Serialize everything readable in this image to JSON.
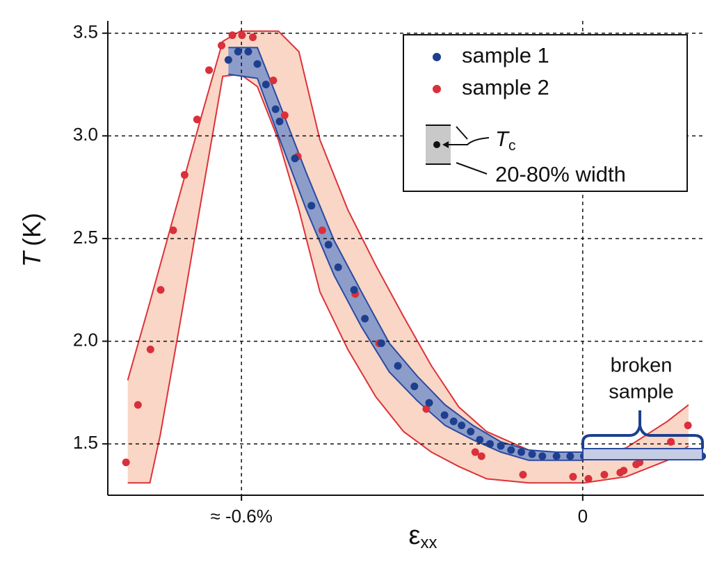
{
  "chart_data": {
    "type": "scatter",
    "y_label_symbol": "T",
    "y_label_unit": "(K)",
    "x_label_symbol": "ε",
    "x_label_subscript": "xx",
    "xlim": [
      -0.835,
      0.213
    ],
    "ylim": [
      1.25,
      3.56
    ],
    "xticks": [
      {
        "value": -0.6,
        "label": "≈ -0.6%"
      },
      0
    ],
    "yticks": [
      1.5,
      {
        "value": 2,
        "label": "2.0"
      },
      2.5,
      {
        "value": 3,
        "label": "3.0"
      },
      3.5
    ],
    "grid": true,
    "legend_position": "upper right",
    "legend_key": {
      "symbol": "T",
      "subscript": "c",
      "width_label": "20-80% width"
    },
    "annotation": [
      "broken",
      "sample"
    ],
    "series": [
      {
        "name": "sample 1",
        "color": "#1d3f8e",
        "band_fill": "#8d9dca",
        "band_stroke": "#2a4aa2",
        "x": [
          -0.623,
          -0.606,
          -0.588,
          -0.572,
          -0.557,
          -0.54,
          -0.533,
          -0.506,
          -0.477,
          -0.447,
          -0.43,
          -0.402,
          -0.383,
          -0.354,
          -0.325,
          -0.296,
          -0.27,
          -0.243,
          -0.227,
          -0.213,
          -0.197,
          -0.181,
          -0.163,
          -0.144,
          -0.126,
          -0.108,
          -0.089,
          -0.071,
          -0.046,
          -0.022,
          0.002,
          0.027,
          0.051,
          0.076,
          0.1,
          0.125,
          0.149,
          0.18,
          0.21
        ],
        "values": [
          3.37,
          3.41,
          3.41,
          3.35,
          3.25,
          3.13,
          3.07,
          2.89,
          2.66,
          2.47,
          2.36,
          2.25,
          2.11,
          1.99,
          1.88,
          1.78,
          1.7,
          1.64,
          1.61,
          1.59,
          1.56,
          1.52,
          1.5,
          1.49,
          1.47,
          1.46,
          1.45,
          1.44,
          1.44,
          1.44,
          1.44,
          1.44,
          1.44,
          1.44,
          1.44,
          1.44,
          1.44,
          1.44,
          1.44
        ],
        "band": {
          "x": [
            -0.623,
            -0.572,
            -0.535,
            -0.486,
            -0.437,
            -0.389,
            -0.34,
            -0.291,
            -0.242,
            -0.193,
            -0.144,
            -0.095,
            -0.046,
            0.002
          ],
          "high": [
            3.43,
            3.43,
            3.17,
            2.82,
            2.49,
            2.24,
            1.99,
            1.83,
            1.69,
            1.59,
            1.51,
            1.47,
            1.46,
            1.46
          ],
          "low": [
            3.3,
            3.28,
            3.0,
            2.64,
            2.32,
            2.07,
            1.85,
            1.71,
            1.59,
            1.52,
            1.46,
            1.42,
            1.42,
            1.42
          ]
        }
      },
      {
        "name": "sample 2",
        "color": "#d9303b",
        "band_fill": "#f9d6c5",
        "band_stroke": "#de3139",
        "x": [
          -0.803,
          -0.782,
          -0.76,
          -0.742,
          -0.72,
          -0.7,
          -0.678,
          -0.657,
          -0.635,
          -0.616,
          -0.599,
          -0.58,
          -0.544,
          -0.524,
          -0.501,
          -0.458,
          -0.4,
          -0.358,
          -0.275,
          -0.189,
          -0.178,
          -0.105,
          -0.017,
          0.01,
          0.038,
          0.066,
          0.072,
          0.094,
          0.1,
          0.128,
          0.155,
          0.185
        ],
        "values": [
          1.41,
          1.69,
          1.96,
          2.25,
          2.54,
          2.81,
          3.08,
          3.32,
          3.44,
          3.49,
          3.49,
          3.48,
          3.27,
          3.1,
          2.9,
          2.54,
          2.23,
          1.99,
          1.67,
          1.46,
          1.44,
          1.35,
          1.34,
          1.33,
          1.35,
          1.36,
          1.37,
          1.4,
          1.41,
          1.45,
          1.51,
          1.59
        ],
        "band": {
          "x": [
            -0.8,
            -0.761,
            -0.743,
            -0.706,
            -0.67,
            -0.633,
            -0.602,
            -0.572,
            -0.535,
            -0.499,
            -0.462,
            -0.413,
            -0.364,
            -0.315,
            -0.266,
            -0.218,
            -0.169,
            -0.095,
            0.002,
            0.076,
            0.149,
            0.186
          ],
          "high": [
            1.81,
            2.19,
            2.37,
            2.74,
            3.1,
            3.46,
            3.51,
            3.51,
            3.51,
            3.41,
            2.98,
            2.64,
            2.37,
            2.12,
            1.88,
            1.68,
            1.56,
            1.47,
            1.44,
            1.48,
            1.61,
            1.69
          ],
          "low": [
            1.31,
            1.31,
            1.54,
            2.12,
            2.7,
            3.29,
            3.3,
            3.24,
            2.98,
            2.64,
            2.24,
            1.96,
            1.73,
            1.56,
            1.46,
            1.39,
            1.33,
            1.31,
            1.31,
            1.34,
            1.42,
            1.49
          ]
        }
      }
    ]
  }
}
